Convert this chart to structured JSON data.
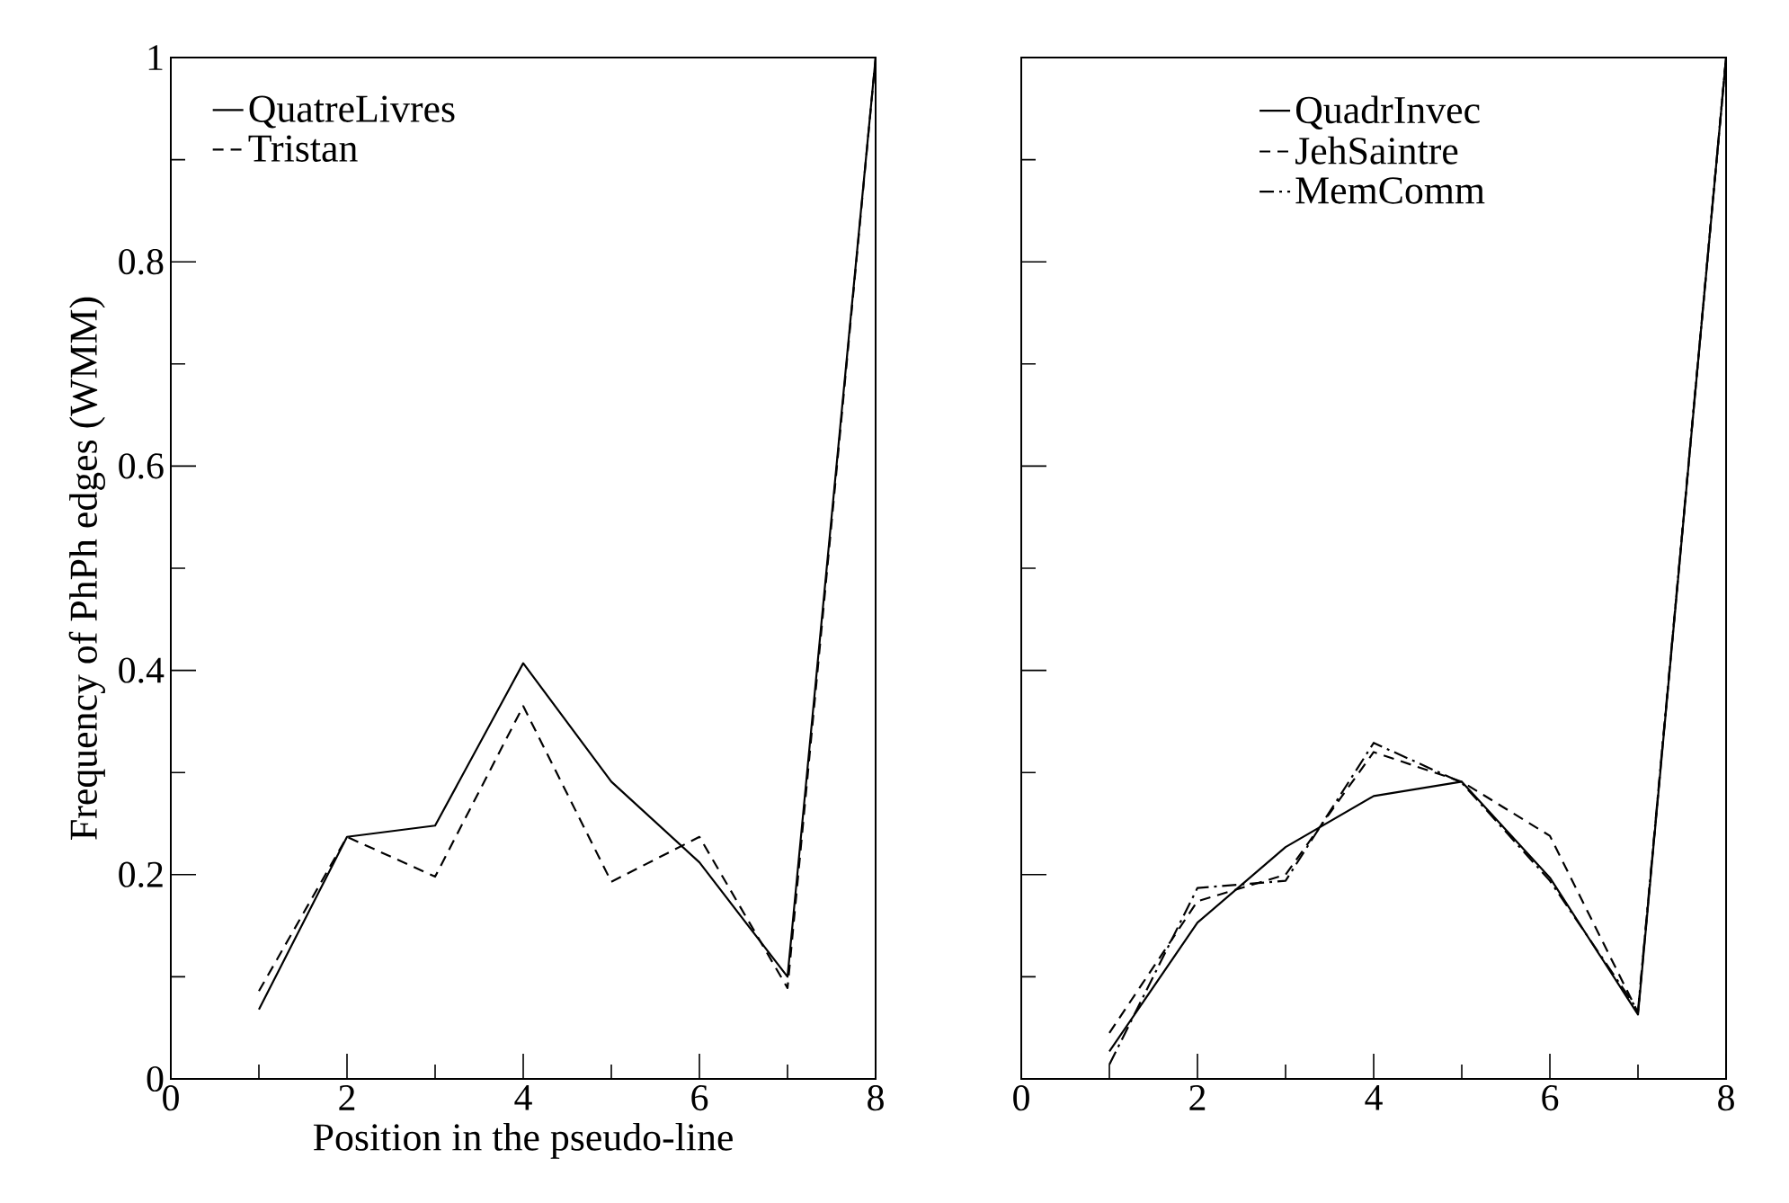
{
  "chart_data": [
    {
      "type": "line",
      "xlabel": "Position in the pseudo-line",
      "ylabel": "Frequency of PhPh edges (WMM)",
      "x": [
        1,
        2,
        3,
        4,
        5,
        6,
        7,
        8
      ],
      "series": [
        {
          "name": "QuatreLivres",
          "color": "#000000",
          "line_style": "solid",
          "values": [
            0.068,
            0.237,
            0.248,
            0.407,
            0.291,
            0.212,
            0.1,
            1.0
          ]
        },
        {
          "name": "Tristan",
          "color": "#000000",
          "line_style": "dashed",
          "values": [
            0.086,
            0.237,
            0.198,
            0.365,
            0.193,
            0.237,
            0.089,
            1.0
          ]
        }
      ],
      "xlim": [
        0,
        8
      ],
      "ylim": [
        0,
        1
      ],
      "xticks": [
        0,
        {
          "value": 1,
          "label": null
        },
        2,
        {
          "value": 3,
          "label": null
        },
        4,
        {
          "value": 5,
          "label": null
        },
        6,
        {
          "value": 7,
          "label": null
        },
        8
      ],
      "yticks": [
        0,
        {
          "value": 0.1,
          "label": null
        },
        0.2,
        {
          "value": 0.3,
          "label": null
        },
        0.4,
        {
          "value": 0.5,
          "label": null
        },
        0.6,
        {
          "value": 0.7,
          "label": null
        },
        0.8,
        {
          "value": 0.9,
          "label": null
        },
        1
      ],
      "legend": "top left",
      "grid": false
    },
    {
      "type": "line",
      "x": [
        1,
        2,
        3,
        4,
        5,
        6,
        7,
        8
      ],
      "series": [
        {
          "name": "QuadrInvec",
          "color": "#000000",
          "line_style": "solid",
          "values": [
            0.027,
            0.153,
            0.227,
            0.277,
            0.291,
            0.197,
            0.063,
            1.0
          ]
        },
        {
          "name": "JehSaintre",
          "color": "#000000",
          "line_style": "dashed",
          "values": [
            0.045,
            0.174,
            0.2,
            0.32,
            0.291,
            0.238,
            0.065,
            1.0
          ]
        },
        {
          "name": "MemComm",
          "color": "#000000",
          "line_style": "dashdot",
          "values": [
            0.014,
            0.187,
            0.194,
            0.329,
            0.29,
            0.194,
            0.067,
            1.0
          ]
        }
      ],
      "xlim": [
        0,
        8
      ],
      "ylim": [
        0,
        1
      ],
      "xticks": [
        0,
        {
          "value": 1,
          "label": null
        },
        2,
        {
          "value": 3,
          "label": null
        },
        4,
        {
          "value": 5,
          "label": null
        },
        6,
        {
          "value": 7,
          "label": null
        },
        8
      ],
      "yticks": [
        0,
        {
          "value": 0.1,
          "label": null
        },
        0.2,
        {
          "value": 0.3,
          "label": null
        },
        0.4,
        {
          "value": 0.5,
          "label": null
        },
        0.6,
        {
          "value": 0.7,
          "label": null
        },
        0.8,
        {
          "value": 0.9,
          "label": null
        },
        1
      ],
      "tick_labels": "x",
      "legend": "top",
      "grid": false
    }
  ]
}
